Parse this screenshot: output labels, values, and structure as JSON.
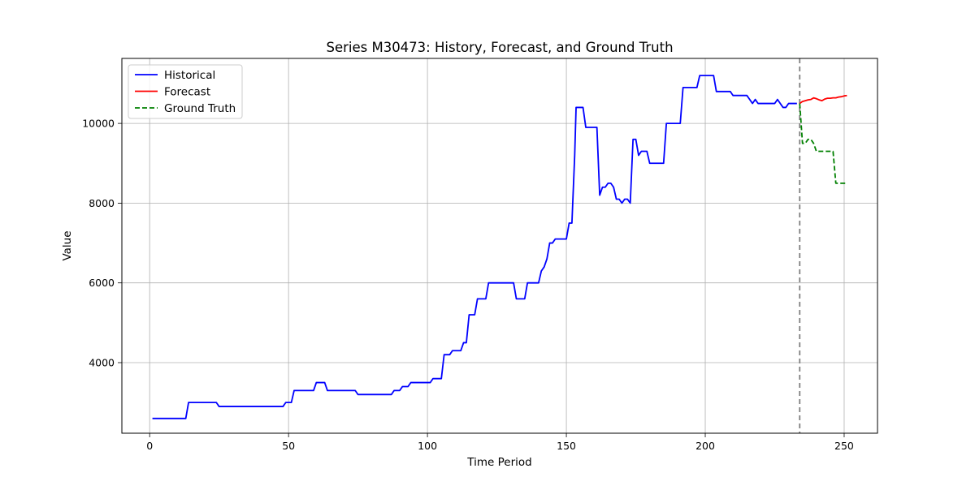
{
  "chart_data": {
    "type": "line",
    "title": "Series M30473: History, Forecast, and Ground Truth",
    "xlabel": "Time Period",
    "ylabel": "Value",
    "xlim": [
      -10,
      262
    ],
    "ylim": [
      2230,
      11630
    ],
    "xticks": [
      0,
      50,
      100,
      150,
      200,
      250
    ],
    "yticks": [
      4000,
      6000,
      8000,
      10000
    ],
    "grid": true,
    "legend_position": "top-left",
    "forecast_start_marker": 234,
    "colors": {
      "historical": "#0000ff",
      "forecast": "#ff0000",
      "ground_truth": "#008000",
      "marker": "#808080",
      "grid": "#b0b0b0"
    },
    "series": [
      {
        "name": "Historical",
        "style": "solid",
        "color": "#0000ff",
        "points": [
          [
            1,
            2600
          ],
          [
            13,
            2600
          ],
          [
            14,
            3000
          ],
          [
            24,
            3000
          ],
          [
            25,
            2900
          ],
          [
            48,
            2900
          ],
          [
            49,
            3000
          ],
          [
            51,
            3000
          ],
          [
            52,
            3300
          ],
          [
            59,
            3300
          ],
          [
            60,
            3500
          ],
          [
            63,
            3500
          ],
          [
            64,
            3300
          ],
          [
            74,
            3300
          ],
          [
            75,
            3200
          ],
          [
            87,
            3200
          ],
          [
            88,
            3300
          ],
          [
            90,
            3300
          ],
          [
            91,
            3400
          ],
          [
            93,
            3400
          ],
          [
            94,
            3500
          ],
          [
            101,
            3500
          ],
          [
            102,
            3600
          ],
          [
            105,
            3600
          ],
          [
            106,
            4200
          ],
          [
            108,
            4200
          ],
          [
            109,
            4300
          ],
          [
            112,
            4300
          ],
          [
            113,
            4500
          ],
          [
            114,
            4500
          ],
          [
            115,
            5200
          ],
          [
            117,
            5200
          ],
          [
            118,
            5600
          ],
          [
            121,
            5600
          ],
          [
            122,
            6000
          ],
          [
            131,
            6000
          ],
          [
            132,
            5600
          ],
          [
            135,
            5600
          ],
          [
            136,
            6000
          ],
          [
            140,
            6000
          ],
          [
            141,
            6300
          ],
          [
            142,
            6400
          ],
          [
            143,
            6600
          ],
          [
            144,
            7000
          ],
          [
            145,
            7000
          ],
          [
            146,
            7100
          ],
          [
            150,
            7100
          ],
          [
            151,
            7500
          ],
          [
            152,
            7500
          ],
          [
            153,
            9200
          ],
          [
            153.5,
            10400
          ],
          [
            156,
            10400
          ],
          [
            157,
            9900
          ],
          [
            161,
            9900
          ],
          [
            162,
            8200
          ],
          [
            163,
            8400
          ],
          [
            164,
            8400
          ],
          [
            165,
            8500
          ],
          [
            166,
            8500
          ],
          [
            167,
            8400
          ],
          [
            168,
            8100
          ],
          [
            169,
            8100
          ],
          [
            170,
            8000
          ],
          [
            171,
            8100
          ],
          [
            172,
            8100
          ],
          [
            173,
            8000
          ],
          [
            174,
            9600
          ],
          [
            175,
            9600
          ],
          [
            176,
            9200
          ],
          [
            177,
            9300
          ],
          [
            179,
            9300
          ],
          [
            180,
            9000
          ],
          [
            185,
            9000
          ],
          [
            186,
            10000
          ],
          [
            191,
            10000
          ],
          [
            192,
            10900
          ],
          [
            197,
            10900
          ],
          [
            198,
            11200
          ],
          [
            203,
            11200
          ],
          [
            204,
            10800
          ],
          [
            209,
            10800
          ],
          [
            210,
            10700
          ],
          [
            215,
            10700
          ],
          [
            217,
            10500
          ],
          [
            218,
            10600
          ],
          [
            219,
            10500
          ],
          [
            225,
            10500
          ],
          [
            226,
            10600
          ],
          [
            228,
            10400
          ],
          [
            229,
            10400
          ],
          [
            230,
            10500
          ],
          [
            233,
            10500
          ]
        ]
      },
      {
        "name": "Forecast",
        "style": "solid",
        "color": "#ff0000",
        "points": [
          [
            234,
            10500
          ],
          [
            235,
            10550
          ],
          [
            236,
            10570
          ],
          [
            237,
            10590
          ],
          [
            238,
            10600
          ],
          [
            239,
            10640
          ],
          [
            240,
            10620
          ],
          [
            241,
            10590
          ],
          [
            242,
            10570
          ],
          [
            243,
            10610
          ],
          [
            244,
            10630
          ],
          [
            245,
            10630
          ],
          [
            246,
            10640
          ],
          [
            247,
            10640
          ],
          [
            248,
            10660
          ],
          [
            249,
            10670
          ],
          [
            250,
            10690
          ],
          [
            251,
            10700
          ]
        ]
      },
      {
        "name": "Ground Truth",
        "style": "dashed",
        "color": "#008000",
        "points": [
          [
            234,
            10500
          ],
          [
            235,
            9500
          ],
          [
            236,
            9500
          ],
          [
            237,
            9600
          ],
          [
            238,
            9600
          ],
          [
            239,
            9500
          ],
          [
            240,
            9300
          ],
          [
            245,
            9300
          ],
          [
            246,
            9300
          ],
          [
            247,
            8500
          ],
          [
            251,
            8500
          ]
        ]
      }
    ]
  }
}
